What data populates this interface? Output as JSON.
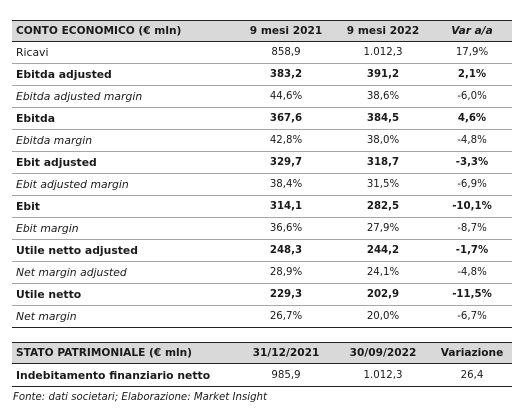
{
  "income": {
    "headers": [
      "CONTO ECONOMICO (€ mln)",
      "9 mesi 2021",
      "9 mesi 2022",
      "Var a/a"
    ],
    "rows": [
      {
        "label": "Ricavi",
        "v2021": "858,9",
        "v2022": "1.012,3",
        "var": "17,9%",
        "style": "norm"
      },
      {
        "label": "Ebitda adjusted",
        "v2021": "383,2",
        "v2022": "391,2",
        "var": "2,1%",
        "style": "bold"
      },
      {
        "label": "Ebitda adjusted margin",
        "v2021": "44,6%",
        "v2022": "38,6%",
        "var": "-6,0%",
        "style": "ital"
      },
      {
        "label": "Ebitda",
        "v2021": "367,6",
        "v2022": "384,5",
        "var": "4,6%",
        "style": "bold"
      },
      {
        "label": "Ebitda margin",
        "v2021": "42,8%",
        "v2022": "38,0%",
        "var": "-4,8%",
        "style": "ital"
      },
      {
        "label": "Ebit adjusted",
        "v2021": "329,7",
        "v2022": "318,7",
        "var": "-3,3%",
        "style": "bold"
      },
      {
        "label": "Ebit adjusted margin",
        "v2021": "38,4%",
        "v2022": "31,5%",
        "var": "-6,9%",
        "style": "ital"
      },
      {
        "label": "Ebit",
        "v2021": "314,1",
        "v2022": "282,5",
        "var": "-10,1%",
        "style": "bold"
      },
      {
        "label": "Ebit margin",
        "v2021": "36,6%",
        "v2022": "27,9%",
        "var": "-8,7%",
        "style": "ital"
      },
      {
        "label": "Utile netto adjusted",
        "v2021": "248,3",
        "v2022": "244,2",
        "var": "-1,7%",
        "style": "bold"
      },
      {
        "label": "Net margin adjusted",
        "v2021": "28,9%",
        "v2022": "24,1%",
        "var": "-4,8%",
        "style": "ital"
      },
      {
        "label": "Utile netto",
        "v2021": "229,3",
        "v2022": "202,9",
        "var": "-11,5%",
        "style": "bold"
      },
      {
        "label": "Net margin",
        "v2021": "26,7%",
        "v2022": "20,0%",
        "var": "-6,7%",
        "style": "ital"
      }
    ]
  },
  "balance": {
    "headers": [
      "STATO PATRIMONIALE (€ mln)",
      "31/12/2021",
      "30/09/2022",
      "Variazione"
    ],
    "row": {
      "label": "Indebitamento finanziario netto",
      "d2021": "985,9",
      "d2022": "1.012,3",
      "var": "26,4"
    }
  },
  "source": "Fonte: dati societari; Elaborazione: Market Insight"
}
